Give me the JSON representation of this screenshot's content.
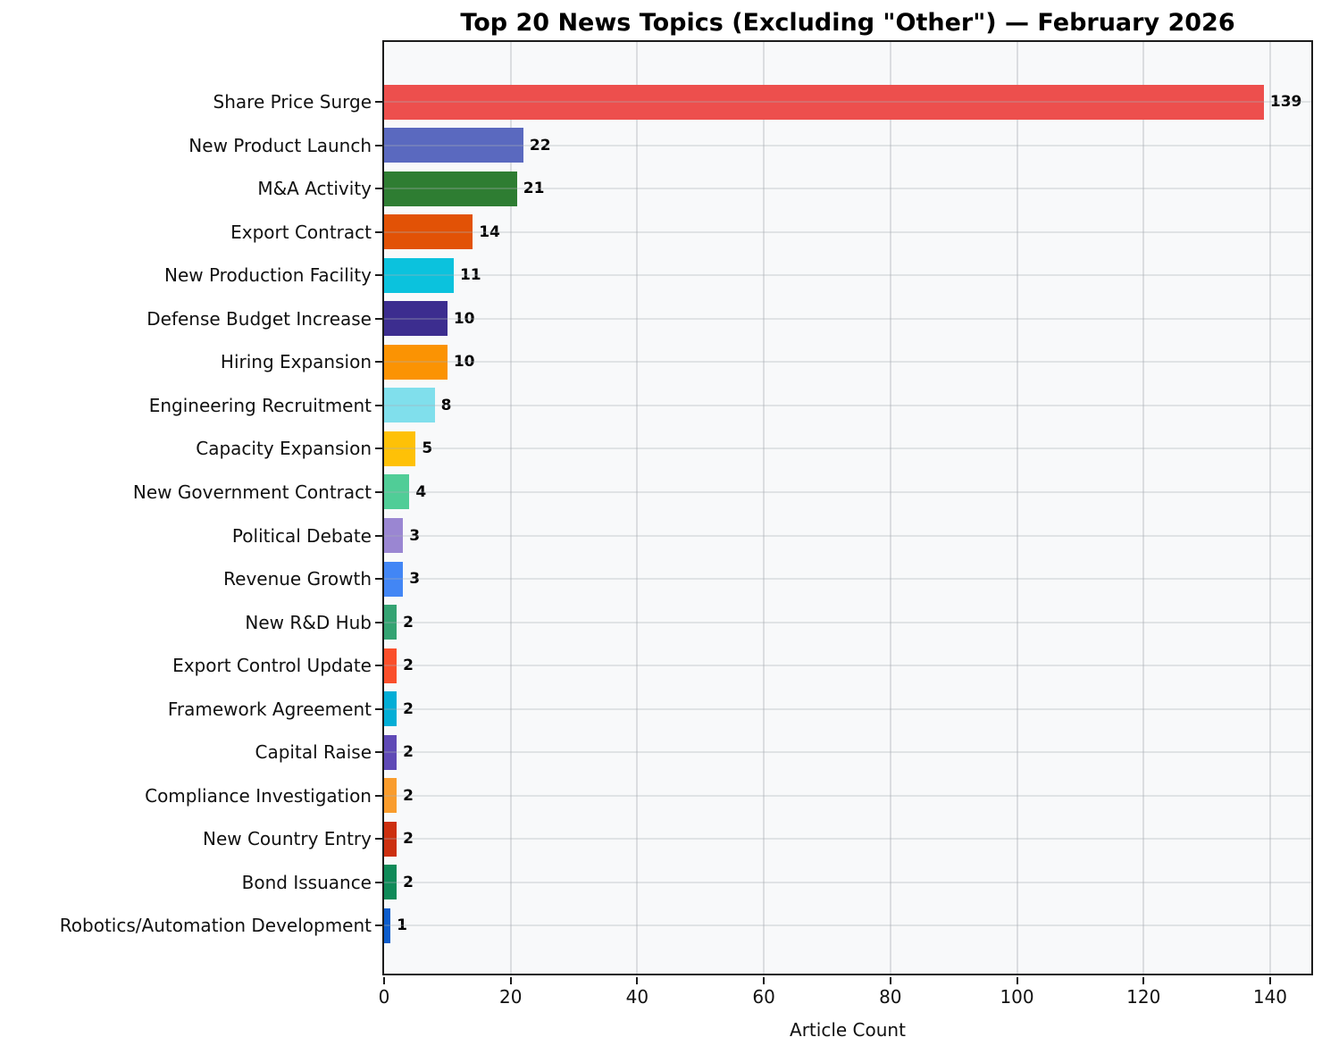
{
  "chart_data": {
    "type": "bar",
    "orientation": "horizontal",
    "title": "Top 20 News Topics (Excluding \"Other\") — February 2026",
    "xlabel": "Article Count",
    "ylabel": "",
    "categories": [
      "Share Price Surge",
      "New Product Launch",
      "M&A Activity",
      "Export Contract",
      "New Production Facility",
      "Defense Budget Increase",
      "Hiring Expansion",
      "Engineering Recruitment",
      "Capacity Expansion",
      "New Government Contract",
      "Political Debate",
      "Revenue Growth",
      "New R&D Hub",
      "Export Control Update",
      "Framework Agreement",
      "Capital Raise",
      "Compliance Investigation",
      "New Country Entry",
      "Bond Issuance",
      "Robotics/Automation Development"
    ],
    "values": [
      139,
      22,
      21,
      14,
      11,
      10,
      10,
      8,
      5,
      4,
      3,
      3,
      2,
      2,
      2,
      2,
      2,
      2,
      2,
      1
    ],
    "bar_colors": [
      "#ed4f4d",
      "#5a69bf",
      "#2e7d32",
      "#e25206",
      "#0bc2dd",
      "#3c2d8f",
      "#fb9303",
      "#80dfec",
      "#fec107",
      "#50cd97",
      "#9a86d2",
      "#4286f5",
      "#34a372",
      "#fa4f2b",
      "#02aed6",
      "#5f49b6",
      "#f99c2c",
      "#cc2f0f",
      "#0f8a58",
      "#0b5ccb"
    ],
    "value_labels": [
      139,
      22,
      21,
      14,
      11,
      10,
      10,
      8,
      5,
      4,
      3,
      3,
      2,
      2,
      2,
      2,
      2,
      2,
      2,
      1
    ],
    "xticks": [
      0,
      20,
      40,
      60,
      80,
      100,
      120,
      140
    ],
    "xlim": [
      0,
      146.5
    ],
    "grid": true,
    "legend": false
  }
}
